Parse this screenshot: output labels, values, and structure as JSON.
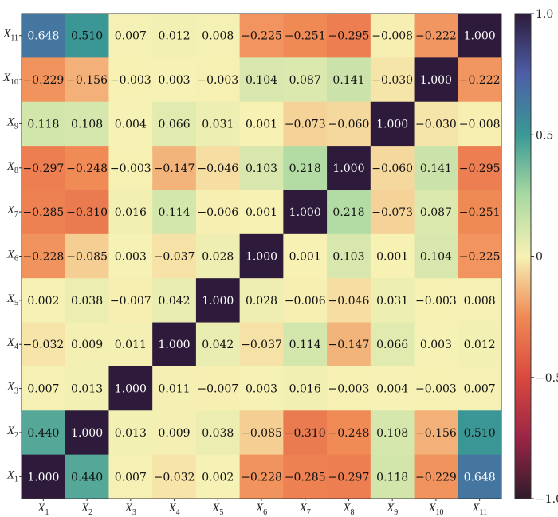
{
  "chart_data": {
    "type": "heatmap",
    "title": "",
    "variables": [
      "X1",
      "X2",
      "X3",
      "X4",
      "X5",
      "X6",
      "X7",
      "X8",
      "X9",
      "X10",
      "X11"
    ],
    "row_labels": [
      {
        "base": "X",
        "sub": "11"
      },
      {
        "base": "X",
        "sub": "10"
      },
      {
        "base": "X",
        "sub": "9"
      },
      {
        "base": "X",
        "sub": "8"
      },
      {
        "base": "X",
        "sub": "7"
      },
      {
        "base": "X",
        "sub": "6"
      },
      {
        "base": "X",
        "sub": "5"
      },
      {
        "base": "X",
        "sub": "4"
      },
      {
        "base": "X",
        "sub": "3"
      },
      {
        "base": "X",
        "sub": "2"
      },
      {
        "base": "X",
        "sub": "1"
      }
    ],
    "col_labels": [
      {
        "base": "X",
        "sub": "1"
      },
      {
        "base": "X",
        "sub": "2"
      },
      {
        "base": "X",
        "sub": "3"
      },
      {
        "base": "X",
        "sub": "4"
      },
      {
        "base": "X",
        "sub": "5"
      },
      {
        "base": "X",
        "sub": "6"
      },
      {
        "base": "X",
        "sub": "7"
      },
      {
        "base": "X",
        "sub": "8"
      },
      {
        "base": "X",
        "sub": "9"
      },
      {
        "base": "X",
        "sub": "10"
      },
      {
        "base": "X",
        "sub": "11"
      }
    ],
    "values": [
      [
        "0.648",
        "0.510",
        "0.007",
        "0.012",
        "0.008",
        "−0.225",
        "−0.251",
        "−0.295",
        "−0.008",
        "−0.222",
        "1.000"
      ],
      [
        "−0.229",
        "−0.156",
        "−0.003",
        "0.003",
        "−0.003",
        "0.104",
        "0.087",
        "0.141",
        "−0.030",
        "1.000",
        "−0.222"
      ],
      [
        "0.118",
        "0.108",
        "0.004",
        "0.066",
        "0.031",
        "0.001",
        "−0.073",
        "−0.060",
        "1.000",
        "−0.030",
        "−0.008"
      ],
      [
        "−0.297",
        "−0.248",
        "−0.003",
        "−0.147",
        "−0.046",
        "0.103",
        "0.218",
        "1.000",
        "−0.060",
        "0.141",
        "−0.295"
      ],
      [
        "−0.285",
        "−0.310",
        "0.016",
        "0.114",
        "−0.006",
        "0.001",
        "1.000",
        "0.218",
        "−0.073",
        "0.087",
        "−0.251"
      ],
      [
        "−0.228",
        "−0.085",
        "0.003",
        "−0.037",
        "0.028",
        "1.000",
        "0.001",
        "0.103",
        "0.001",
        "0.104",
        "−0.225"
      ],
      [
        "0.002",
        "0.038",
        "−0.007",
        "0.042",
        "1.000",
        "0.028",
        "−0.006",
        "−0.046",
        "0.031",
        "−0.003",
        "0.008"
      ],
      [
        "−0.032",
        "0.009",
        "0.011",
        "1.000",
        "0.042",
        "−0.037",
        "0.114",
        "−0.147",
        "0.066",
        "0.003",
        "0.012"
      ],
      [
        "0.007",
        "0.013",
        "1.000",
        "0.011",
        "−0.007",
        "0.003",
        "0.016",
        "−0.003",
        "0.004",
        "−0.003",
        "0.007"
      ],
      [
        "0.440",
        "1.000",
        "0.013",
        "0.009",
        "0.038",
        "−0.085",
        "−0.310",
        "−0.248",
        "0.108",
        "−0.156",
        "0.510"
      ],
      [
        "1.000",
        "0.440",
        "0.007",
        "−0.032",
        "0.002",
        "−0.228",
        "−0.285",
        "−0.297",
        "0.118",
        "−0.229",
        "0.648"
      ]
    ],
    "colorbar": {
      "range": [
        -1.0,
        1.0
      ],
      "ticks": [
        {
          "value": 1.0,
          "label": "1.0"
        },
        {
          "value": 0.5,
          "label": "0.5"
        },
        {
          "value": 0.0,
          "label": "0"
        },
        {
          "value": -0.5,
          "label": "−0.5"
        },
        {
          "value": -1.0,
          "label": "−1.0"
        }
      ],
      "colormap": "Spectral",
      "stops": [
        {
          "v": -1.0,
          "color": "#2f1b2b"
        },
        {
          "v": -0.75,
          "color": "#9b2546"
        },
        {
          "v": -0.5,
          "color": "#d9493f"
        },
        {
          "v": -0.25,
          "color": "#f08a55"
        },
        {
          "v": 0.0,
          "color": "#f7f1b4"
        },
        {
          "v": 0.25,
          "color": "#a9d9a2"
        },
        {
          "v": 0.5,
          "color": "#3a9995"
        },
        {
          "v": 0.75,
          "color": "#4d5ea8"
        },
        {
          "v": 1.0,
          "color": "#2e1b3b"
        }
      ]
    }
  }
}
